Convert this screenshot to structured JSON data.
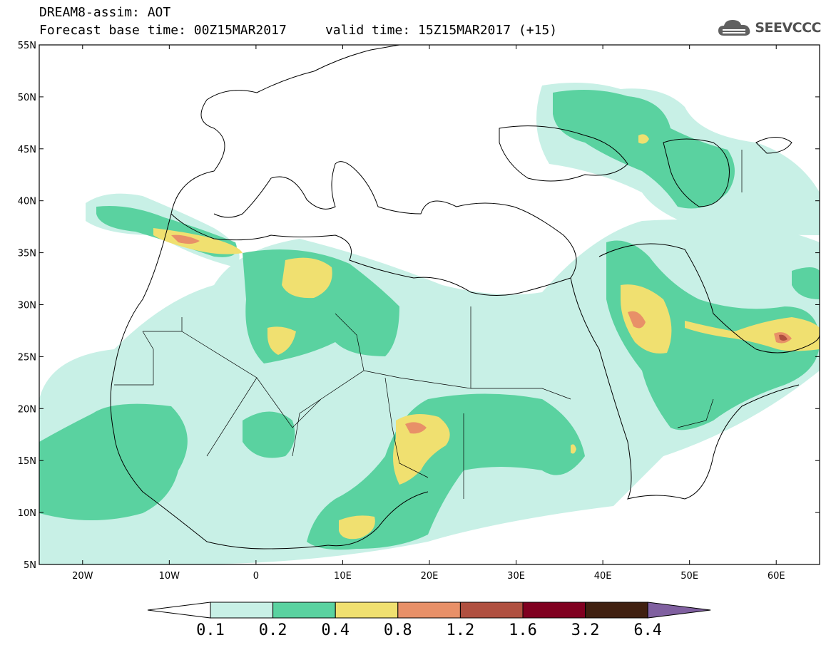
{
  "header": {
    "title_line1": "DREAM8-assim: AOT",
    "title_line2": "Forecast base time: 00Z15MAR2017     valid time: 15Z15MAR2017 (+15)",
    "logo_text": "SEEVCCC"
  },
  "map": {
    "extent": {
      "lon_min": -25,
      "lon_max": 65,
      "lat_min": 5,
      "lat_max": 55
    },
    "lat_labels": [
      "5N",
      "10N",
      "15N",
      "20N",
      "25N",
      "30N",
      "35N",
      "40N",
      "45N",
      "50N",
      "55N"
    ],
    "lat_values": [
      5,
      10,
      15,
      20,
      25,
      30,
      35,
      40,
      45,
      50,
      55
    ],
    "lon_labels": [
      "20W",
      "10W",
      "0",
      "10E",
      "20E",
      "30E",
      "40E",
      "50E",
      "60E"
    ],
    "lon_values": [
      -20,
      -10,
      0,
      10,
      20,
      30,
      40,
      50,
      60
    ]
  },
  "colorbar": {
    "labels": [
      "0.1",
      "0.2",
      "0.4",
      "0.8",
      "1.2",
      "1.6",
      "3.2",
      "6.4"
    ],
    "colors": [
      "#c8f0e6",
      "#5ad2a0",
      "#f0e070",
      "#e89068",
      "#b05040",
      "#800020",
      "#402010",
      "#8060a0"
    ],
    "below_color": "#ffffff"
  },
  "colors": {
    "level_1": "#c8f0e6",
    "level_2": "#5ad2a0",
    "level_3": "#f0e070",
    "level_4": "#e89068",
    "level_5": "#b05040",
    "coast": "#000000"
  }
}
